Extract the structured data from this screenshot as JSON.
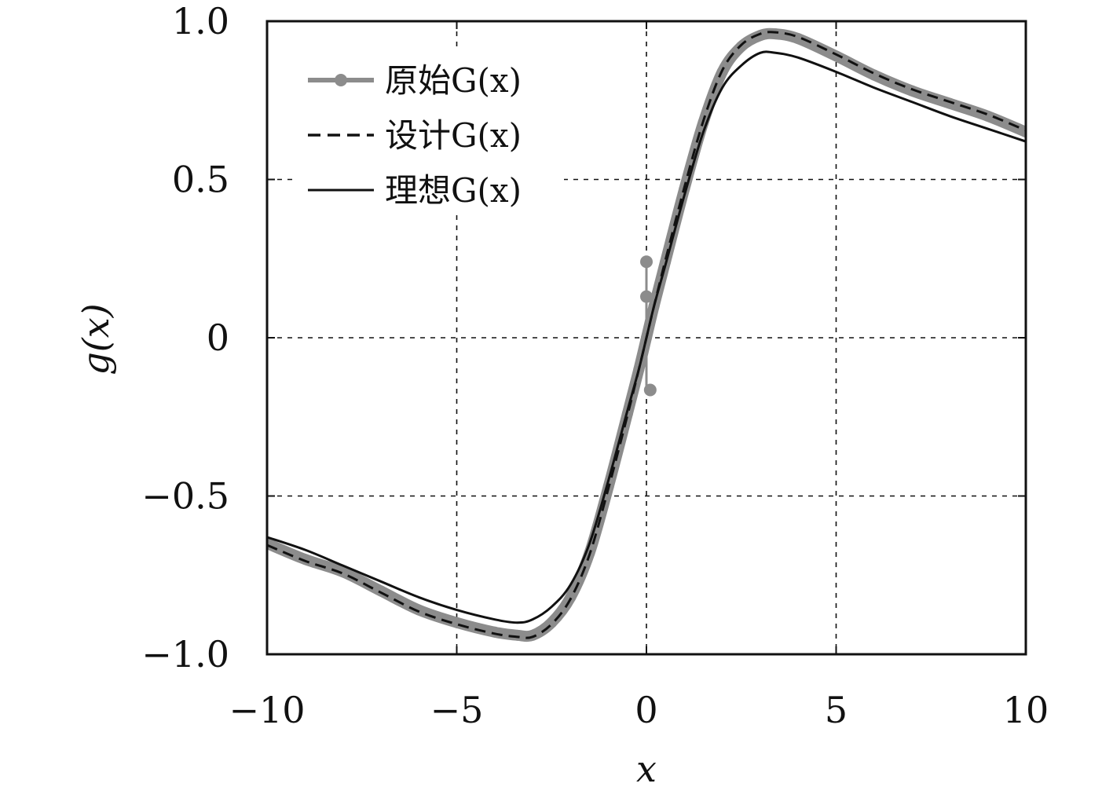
{
  "chart_data": {
    "type": "line",
    "title": "",
    "xlabel": "x",
    "ylabel": "g(x)",
    "xlim": [
      -10,
      10
    ],
    "ylim": [
      -1.0,
      1.0
    ],
    "grid": true,
    "legend_position": "top-left",
    "xticks": [
      -10,
      -5,
      0,
      5,
      10
    ],
    "xtick_labels": [
      "−10",
      "−5",
      "0",
      "5",
      "10"
    ],
    "yticks": [
      -1.0,
      -0.5,
      0,
      0.5,
      1.0
    ],
    "ytick_labels": [
      "−1.0",
      "−0.5",
      "0",
      "0.5",
      "1.0"
    ],
    "colors": {
      "original": "#8c8c8c",
      "designed": "#111111",
      "ideal": "#111111"
    },
    "series": [
      {
        "name": "原始G(x)",
        "style": "gray-thick-with-markers",
        "x": [
          -10,
          -9,
          -8,
          -7,
          -6,
          -5,
          -4,
          -3.4,
          -3,
          -2.5,
          -2,
          -1.5,
          -1,
          -0.5,
          -0.2,
          0,
          0.2,
          0.5,
          1,
          1.5,
          2,
          2.5,
          3,
          3.4,
          4,
          5,
          6,
          7,
          8,
          9,
          10
        ],
        "y": [
          -0.65,
          -0.7,
          -0.74,
          -0.8,
          -0.86,
          -0.9,
          -0.93,
          -0.94,
          -0.94,
          -0.9,
          -0.82,
          -0.68,
          -0.47,
          -0.24,
          -0.1,
          0.0,
          0.1,
          0.24,
          0.47,
          0.68,
          0.84,
          0.92,
          0.955,
          0.96,
          0.945,
          0.89,
          0.83,
          0.78,
          0.74,
          0.7,
          0.65
        ],
        "outliers": [
          {
            "x": 0.0,
            "y": 0.24
          },
          {
            "x": 0.0,
            "y": 0.13
          },
          {
            "x": 0.1,
            "y": -0.165
          }
        ]
      },
      {
        "name": "设计G(x)",
        "style": "black-dashed",
        "x": [
          -10,
          -9,
          -8,
          -7,
          -6,
          -5,
          -4,
          -3.4,
          -3,
          -2.5,
          -2,
          -1.5,
          -1,
          -0.5,
          -0.2,
          0,
          0.2,
          0.5,
          1,
          1.5,
          2,
          2.5,
          3,
          3.4,
          4,
          5,
          6,
          7,
          8,
          9,
          10
        ],
        "y": [
          -0.655,
          -0.705,
          -0.745,
          -0.805,
          -0.865,
          -0.905,
          -0.935,
          -0.945,
          -0.945,
          -0.905,
          -0.825,
          -0.685,
          -0.475,
          -0.245,
          -0.1,
          0.0,
          0.1,
          0.245,
          0.475,
          0.685,
          0.845,
          0.925,
          0.96,
          0.965,
          0.95,
          0.895,
          0.835,
          0.785,
          0.745,
          0.705,
          0.655
        ]
      },
      {
        "name": "理想G(x)",
        "style": "black-solid",
        "x": [
          -10,
          -9,
          -8,
          -7,
          -6,
          -5,
          -4,
          -3.4,
          -3,
          -2.5,
          -2,
          -1.5,
          -1,
          -0.5,
          -0.2,
          0,
          0.2,
          0.5,
          1,
          1.5,
          2,
          2.5,
          3,
          3.4,
          4,
          5,
          6,
          7,
          8,
          9,
          10
        ],
        "y": [
          -0.63,
          -0.67,
          -0.72,
          -0.77,
          -0.82,
          -0.86,
          -0.89,
          -0.9,
          -0.89,
          -0.85,
          -0.78,
          -0.65,
          -0.45,
          -0.23,
          -0.1,
          0.0,
          0.1,
          0.23,
          0.45,
          0.65,
          0.79,
          0.86,
          0.9,
          0.9,
          0.885,
          0.84,
          0.79,
          0.745,
          0.7,
          0.66,
          0.62
        ]
      }
    ]
  }
}
